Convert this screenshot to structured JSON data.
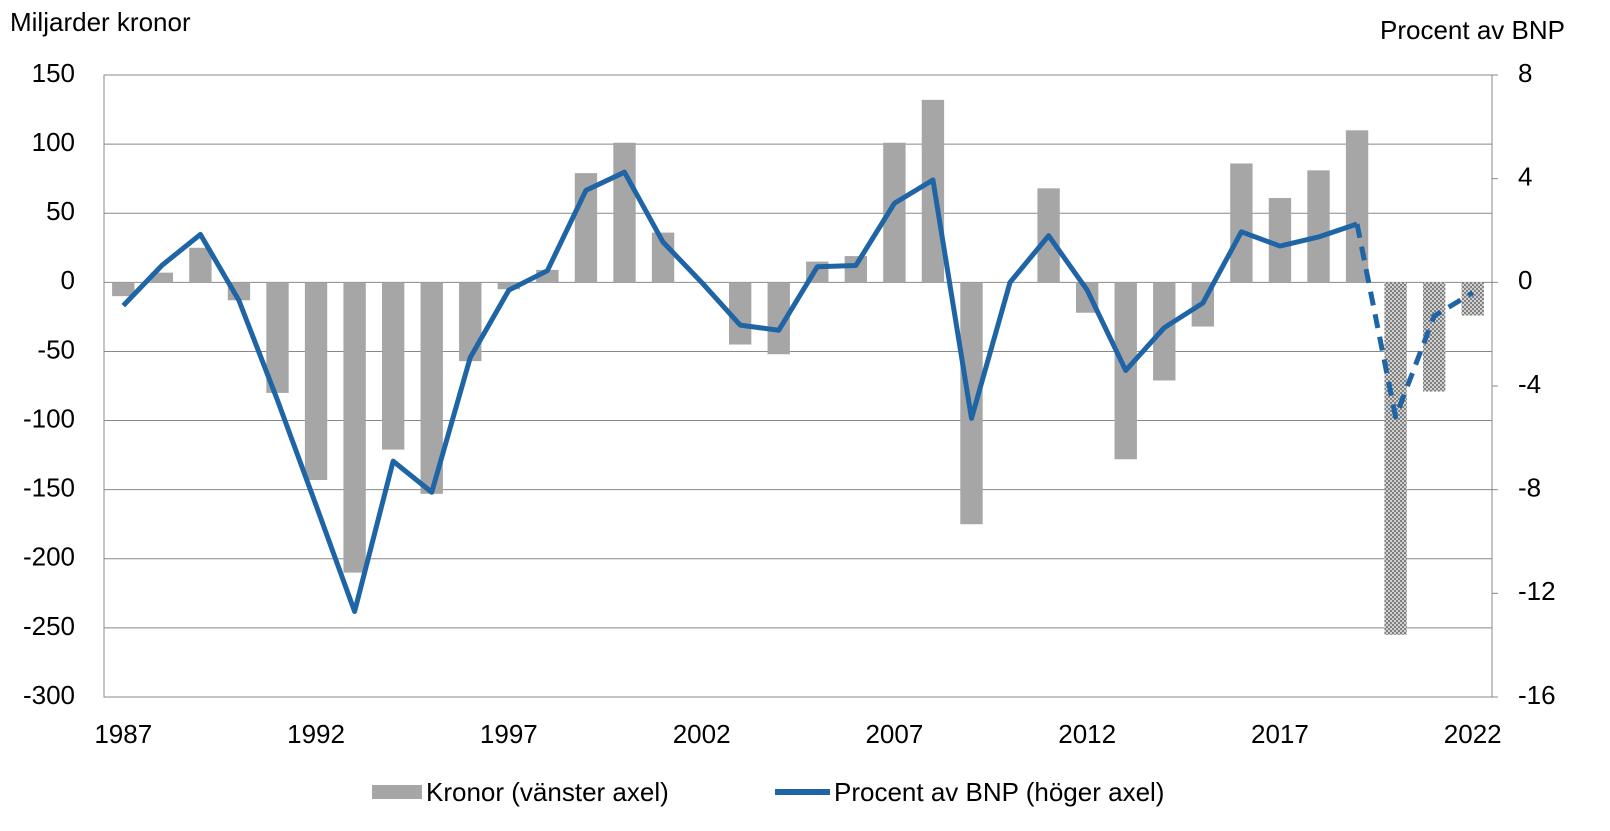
{
  "chart_data": {
    "type": "combo",
    "y_label": "Miljarder kronor",
    "y2_label": "Procent av BNP",
    "categories": [
      "1987",
      null,
      null,
      null,
      null,
      "1992",
      null,
      null,
      null,
      null,
      "1997",
      null,
      null,
      null,
      null,
      "2002",
      null,
      null,
      null,
      null,
      "2007",
      null,
      null,
      null,
      null,
      "2012",
      null,
      null,
      null,
      null,
      "2017",
      null,
      null,
      null,
      null,
      "2022"
    ],
    "series": [
      {
        "name": "Kronor (vänster axel)",
        "type": "bar",
        "color": "#a6a6a6",
        "hatched_from": 33,
        "values": [
          -10,
          7,
          25,
          -13,
          -80,
          -143,
          -210,
          -121,
          -153,
          -57,
          -5,
          9,
          79,
          101,
          36,
          0,
          -45,
          -52,
          15,
          19,
          101,
          132,
          -175,
          0,
          68,
          -22,
          -128,
          -71,
          -32,
          86,
          61,
          81,
          110,
          -255,
          -79,
          -24
        ]
      },
      {
        "name": "Procent av BNP (höger axel)",
        "type": "line",
        "axis": "y2",
        "color": "#1f65a6",
        "dashed_from": 32,
        "values": [
          -0.9,
          0.65,
          1.85,
          -0.7,
          -4.55,
          -8.6,
          -12.7,
          -6.9,
          -8.1,
          -2.9,
          -0.3,
          0.45,
          3.55,
          4.25,
          1.55,
          0,
          -1.65,
          -1.85,
          0.6,
          0.65,
          3.05,
          3.95,
          -5.25,
          0,
          1.8,
          -0.3,
          -3.4,
          -1.75,
          -0.8,
          1.95,
          1.4,
          1.75,
          2.25,
          -5.2,
          -1.3,
          -0.4
        ]
      }
    ],
    "ylim": [
      -300,
      150
    ],
    "yticks": [
      -300,
      -250,
      -200,
      -150,
      -100,
      -50,
      0,
      50,
      100,
      150
    ],
    "y2lim": [
      -16,
      8
    ],
    "y2ticks": [
      -16,
      -12,
      -8,
      -4,
      0,
      4,
      8
    ],
    "grid": true,
    "legend": "bottom"
  }
}
